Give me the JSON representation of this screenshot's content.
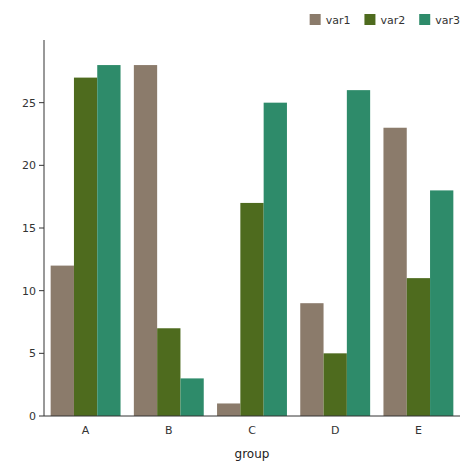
{
  "chart_data": {
    "type": "bar",
    "x_label": "group",
    "categories": [
      "A",
      "B",
      "C",
      "D",
      "E"
    ],
    "series": [
      {
        "name": "var1",
        "color": "#8B7B6B",
        "values": [
          12,
          28,
          1,
          9,
          23
        ]
      },
      {
        "name": "var2",
        "color": "#4E6B1E",
        "values": [
          27,
          7,
          17,
          5,
          11
        ]
      },
      {
        "name": "var3",
        "color": "#2E8B6A",
        "values": [
          28,
          3,
          25,
          26,
          18
        ]
      }
    ],
    "ylim": [
      0,
      30
    ],
    "yticks": [
      0,
      5,
      10,
      15,
      20,
      25
    ],
    "grid": false,
    "legend": "upper right"
  }
}
